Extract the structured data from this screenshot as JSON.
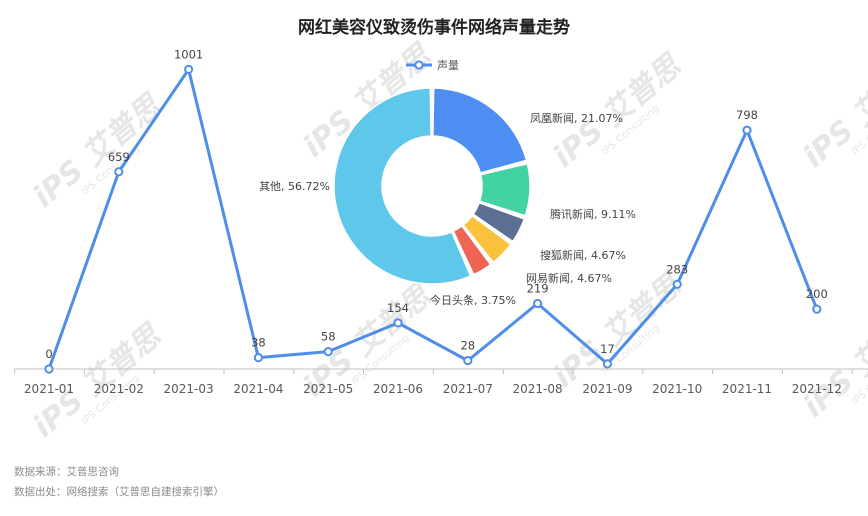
{
  "title": "网红美容仪致烫伤事件网络声量走势",
  "watermark": {
    "brand": "iPS 艾普思",
    "sub": "IPS Consulting"
  },
  "chart_data": [
    {
      "type": "line",
      "legend": [
        "声量"
      ],
      "categories": [
        "2021-01",
        "2021-02",
        "2021-03",
        "2021-04",
        "2021-05",
        "2021-06",
        "2021-07",
        "2021-08",
        "2021-09",
        "2021-10",
        "2021-11",
        "2021-12"
      ],
      "series": [
        {
          "name": "声量",
          "values": [
            0,
            659,
            1001,
            38,
            58,
            154,
            28,
            219,
            17,
            283,
            798,
            200
          ],
          "color": "#4e8ee8"
        }
      ],
      "ylim": [
        0,
        1100
      ],
      "grid": false
    },
    {
      "type": "pie",
      "donut": true,
      "slices": [
        {
          "label": "凤凰新闻",
          "percent": "21.07%",
          "value": 21.07,
          "color": "#4e8ef2"
        },
        {
          "label": "腾讯新闻",
          "percent": "9.11%",
          "value": 9.11,
          "color": "#43d3a3"
        },
        {
          "label": "搜狐新闻",
          "percent": "4.67%",
          "value": 4.67,
          "color": "#5a6f91"
        },
        {
          "label": "网易新闻",
          "percent": "4.67%",
          "value": 4.67,
          "color": "#f9c13c"
        },
        {
          "label": "今日头条",
          "percent": "3.75%",
          "value": 3.75,
          "color": "#ee6555"
        },
        {
          "label": "其他",
          "percent": "56.72%",
          "value": 56.72,
          "color": "#5fc8ea"
        }
      ]
    }
  ],
  "footer": {
    "source": "数据来源：艾普思咨询",
    "origin": "数据出处：网络搜索（艾普思自建搜索引擎）"
  }
}
